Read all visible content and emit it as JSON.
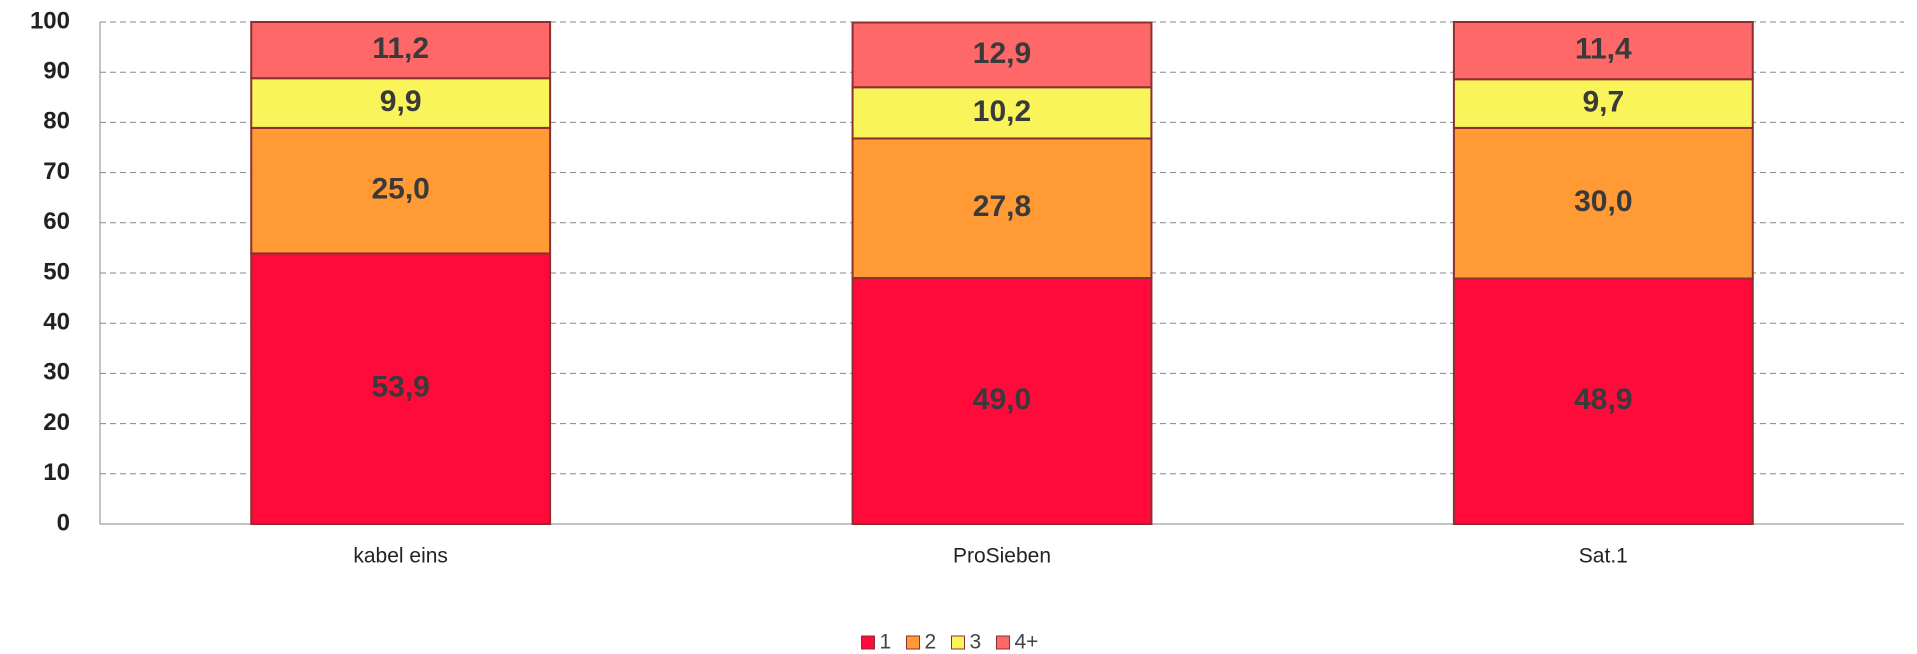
{
  "chart_data": {
    "type": "stacked_bar",
    "categories": [
      "kabel eins",
      "ProSieben",
      "Sat.1"
    ],
    "series": [
      {
        "name": "1",
        "color": "#ff0a3a",
        "values": [
          53.9,
          49.0,
          48.9
        ],
        "value_labels": [
          "53,9",
          "49,0",
          "48,9"
        ]
      },
      {
        "name": "2",
        "color": "#ff9a35",
        "values": [
          25.0,
          27.8,
          30.0
        ],
        "value_labels": [
          "25,0",
          "27,8",
          "30,0"
        ]
      },
      {
        "name": "3",
        "color": "#f8f45a",
        "values": [
          9.9,
          10.2,
          9.7
        ],
        "value_labels": [
          "9,9",
          "10,2",
          "9,7"
        ]
      },
      {
        "name": "4+",
        "color": "#ff6868",
        "values": [
          11.2,
          12.9,
          11.4
        ],
        "value_labels": [
          "11,2",
          "12,9",
          "11,4"
        ]
      }
    ],
    "ylim": [
      0,
      100
    ],
    "yticks": [
      0,
      10,
      20,
      30,
      40,
      50,
      60,
      70,
      80,
      90,
      100
    ],
    "grid": true,
    "legend": "bottom"
  }
}
